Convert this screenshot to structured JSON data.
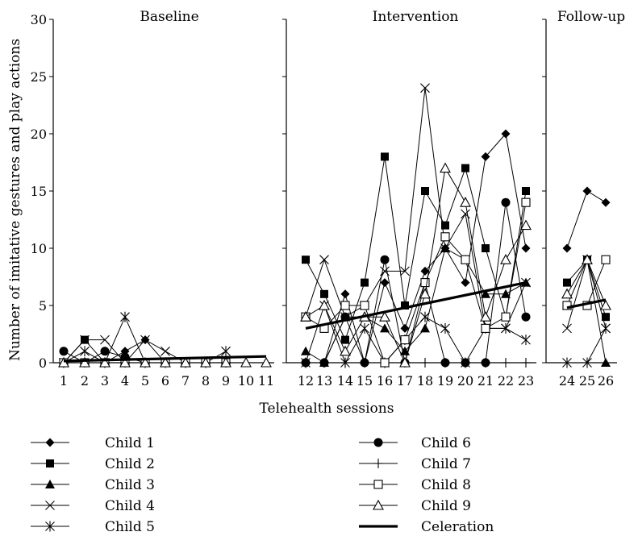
{
  "chart_data": {
    "type": "line",
    "ylabel": "Number of imitative gestures and play actions",
    "xlabel": "Telehealth sessions",
    "ylim": [
      0,
      30
    ],
    "yticks": [
      "0",
      "5",
      "10",
      "15",
      "20",
      "25",
      "30"
    ],
    "phases": [
      {
        "name": "Baseline",
        "sessions": [
          1,
          11
        ]
      },
      {
        "name": "Intervention",
        "sessions": [
          12,
          23
        ]
      },
      {
        "name": "Follow-up",
        "sessions": [
          24,
          26
        ]
      }
    ],
    "x_tick_labels": [
      "1",
      "2",
      "3",
      "4",
      "5",
      "6",
      "7",
      "8",
      "9",
      "10",
      "11",
      "12",
      "13",
      "14",
      "15",
      "16",
      "17",
      "18",
      "19",
      "20",
      "21",
      "22",
      "23",
      "24",
      "25",
      "26"
    ],
    "grid": false,
    "legend_position": "bottom",
    "series": [
      {
        "name": "Child 1",
        "marker": "diamond",
        "baseline": [
          [
            1,
            0
          ],
          [
            2,
            0
          ],
          [
            3,
            0
          ],
          [
            4,
            1
          ],
          [
            5,
            2
          ],
          [
            6,
            0
          ],
          [
            7,
            0
          ]
        ],
        "intervention": [
          [
            12,
            0
          ],
          [
            13,
            0
          ],
          [
            14,
            6
          ],
          [
            15,
            0
          ],
          [
            16,
            7
          ],
          [
            17,
            3
          ],
          [
            18,
            8
          ],
          [
            19,
            10
          ],
          [
            20,
            7
          ],
          [
            21,
            18
          ],
          [
            22,
            20
          ],
          [
            23,
            10
          ]
        ],
        "followup": [
          [
            24,
            10
          ],
          [
            25,
            15
          ],
          [
            26,
            14
          ]
        ]
      },
      {
        "name": "Child 2",
        "marker": "filled-square",
        "baseline": [
          [
            1,
            0
          ],
          [
            2,
            2
          ],
          [
            3,
            0
          ],
          [
            4,
            0
          ],
          [
            5,
            0
          ],
          [
            6,
            0
          ],
          [
            7,
            0
          ]
        ],
        "intervention": [
          [
            12,
            9
          ],
          [
            13,
            6
          ],
          [
            14,
            2
          ],
          [
            15,
            7
          ],
          [
            16,
            18
          ],
          [
            17,
            5
          ],
          [
            18,
            15
          ],
          [
            19,
            12
          ],
          [
            20,
            17
          ],
          [
            21,
            10
          ],
          [
            22,
            4
          ],
          [
            23,
            15
          ]
        ],
        "followup": [
          [
            24,
            7
          ],
          [
            25,
            9
          ],
          [
            26,
            4
          ]
        ]
      },
      {
        "name": "Child 3",
        "marker": "filled-triangle",
        "baseline": [
          [
            1,
            0
          ],
          [
            2,
            0
          ],
          [
            3,
            0
          ],
          [
            4,
            0
          ],
          [
            5,
            0
          ],
          [
            6,
            0
          ],
          [
            7,
            0
          ]
        ],
        "intervention": [
          [
            12,
            1
          ],
          [
            13,
            0
          ],
          [
            14,
            4
          ],
          [
            15,
            4
          ],
          [
            16,
            3
          ],
          [
            17,
            1
          ],
          [
            18,
            3
          ],
          [
            19,
            10
          ],
          [
            20,
            9
          ],
          [
            21,
            6
          ],
          [
            22,
            6
          ],
          [
            23,
            7
          ]
        ],
        "followup": [
          [
            24,
            5
          ],
          [
            25,
            9
          ],
          [
            26,
            0
          ]
        ]
      },
      {
        "name": "Child 4",
        "marker": "x",
        "baseline": [
          [
            1,
            0
          ],
          [
            2,
            2
          ],
          [
            3,
            2
          ],
          [
            4,
            0
          ],
          [
            5,
            2
          ],
          [
            6,
            1
          ],
          [
            7,
            0
          ]
        ],
        "intervention": [
          [
            12,
            4
          ],
          [
            13,
            9
          ],
          [
            14,
            4
          ],
          [
            15,
            5
          ],
          [
            16,
            8
          ],
          [
            17,
            8
          ],
          [
            18,
            24
          ],
          [
            19,
            10
          ],
          [
            20,
            13
          ],
          [
            21,
            3
          ],
          [
            22,
            3
          ],
          [
            23,
            7
          ]
        ],
        "followup": [
          [
            24,
            3
          ],
          [
            25,
            9
          ],
          [
            26,
            3
          ]
        ]
      },
      {
        "name": "Child 5",
        "marker": "asterisk",
        "baseline": [
          [
            1,
            0
          ],
          [
            2,
            1
          ],
          [
            3,
            0
          ],
          [
            4,
            4
          ],
          [
            5,
            0
          ],
          [
            6,
            0
          ],
          [
            7,
            0
          ],
          [
            8,
            0
          ],
          [
            9,
            1
          ]
        ],
        "intervention": [
          [
            12,
            0
          ],
          [
            13,
            5
          ],
          [
            14,
            0
          ],
          [
            15,
            3
          ],
          [
            16,
            0
          ],
          [
            17,
            2
          ],
          [
            18,
            4
          ],
          [
            19,
            3
          ],
          [
            20,
            0
          ],
          [
            21,
            3
          ],
          [
            22,
            3
          ],
          [
            23,
            2
          ]
        ],
        "followup": [
          [
            24,
            0
          ],
          [
            25,
            0
          ],
          [
            26,
            3
          ]
        ]
      },
      {
        "name": "Child 6",
        "marker": "filled-circle",
        "baseline": [
          [
            1,
            1
          ],
          [
            2,
            0
          ],
          [
            3,
            1
          ],
          [
            4,
            0.5
          ],
          [
            5,
            0
          ],
          [
            6,
            0
          ],
          [
            7,
            0
          ],
          [
            8,
            0
          ],
          [
            9,
            0
          ]
        ],
        "intervention": [
          [
            12,
            0
          ],
          [
            13,
            0
          ],
          [
            14,
            4
          ],
          [
            15,
            0
          ],
          [
            16,
            9
          ],
          [
            17,
            0
          ],
          [
            18,
            7
          ],
          [
            19,
            0
          ],
          [
            20,
            0
          ],
          [
            21,
            0
          ],
          [
            22,
            14
          ],
          [
            23,
            4
          ]
        ],
        "followup": []
      },
      {
        "name": "Child 7",
        "marker": "plus",
        "baseline": [
          [
            1,
            0
          ],
          [
            2,
            0
          ],
          [
            3,
            0
          ],
          [
            4,
            0
          ],
          [
            5,
            0
          ],
          [
            6,
            0
          ],
          [
            7,
            0
          ],
          [
            8,
            0
          ],
          [
            9,
            0
          ]
        ],
        "intervention": [
          [
            12,
            0
          ],
          [
            13,
            0
          ],
          [
            14,
            0
          ],
          [
            15,
            0
          ],
          [
            16,
            0
          ],
          [
            17,
            0
          ],
          [
            18,
            0
          ],
          [
            19,
            0
          ],
          [
            20,
            0
          ],
          [
            21,
            0
          ],
          [
            22,
            0
          ],
          [
            23,
            0
          ]
        ],
        "followup": []
      },
      {
        "name": "Child 8",
        "marker": "open-square",
        "baseline": [
          [
            1,
            0
          ],
          [
            2,
            0
          ],
          [
            3,
            0
          ],
          [
            4,
            0
          ],
          [
            5,
            0
          ],
          [
            6,
            0
          ],
          [
            7,
            0
          ],
          [
            8,
            0
          ],
          [
            9,
            0
          ]
        ],
        "intervention": [
          [
            12,
            4
          ],
          [
            13,
            3
          ],
          [
            14,
            5
          ],
          [
            15,
            5
          ],
          [
            16,
            0
          ],
          [
            17,
            2
          ],
          [
            18,
            7
          ],
          [
            19,
            11
          ],
          [
            20,
            9
          ],
          [
            21,
            3
          ],
          [
            22,
            4
          ],
          [
            23,
            14
          ]
        ],
        "followup": [
          [
            24,
            5
          ],
          [
            25,
            5
          ],
          [
            26,
            9
          ]
        ]
      },
      {
        "name": "Child 9",
        "marker": "open-triangle",
        "baseline": [
          [
            1,
            0
          ],
          [
            2,
            0
          ],
          [
            3,
            0
          ],
          [
            4,
            0
          ],
          [
            5,
            0
          ],
          [
            6,
            0
          ],
          [
            7,
            0
          ],
          [
            8,
            0
          ],
          [
            9,
            0
          ],
          [
            10,
            0
          ],
          [
            11,
            0
          ]
        ],
        "intervention": [
          [
            12,
            4
          ],
          [
            13,
            5
          ],
          [
            14,
            1
          ],
          [
            15,
            4
          ],
          [
            16,
            4
          ],
          [
            17,
            0
          ],
          [
            18,
            6
          ],
          [
            19,
            17
          ],
          [
            20,
            14
          ],
          [
            21,
            4
          ],
          [
            22,
            9
          ],
          [
            23,
            12
          ]
        ],
        "followup": [
          [
            24,
            6
          ],
          [
            25,
            9
          ],
          [
            26,
            5
          ]
        ]
      },
      {
        "name": "Celeration",
        "marker": "thick-line",
        "baseline": [
          [
            1,
            0.15
          ],
          [
            11,
            0.55
          ]
        ],
        "intervention": [
          [
            12,
            3
          ],
          [
            23,
            7
          ]
        ],
        "followup": [
          [
            24,
            4.8
          ],
          [
            26,
            5.5
          ]
        ]
      }
    ]
  }
}
